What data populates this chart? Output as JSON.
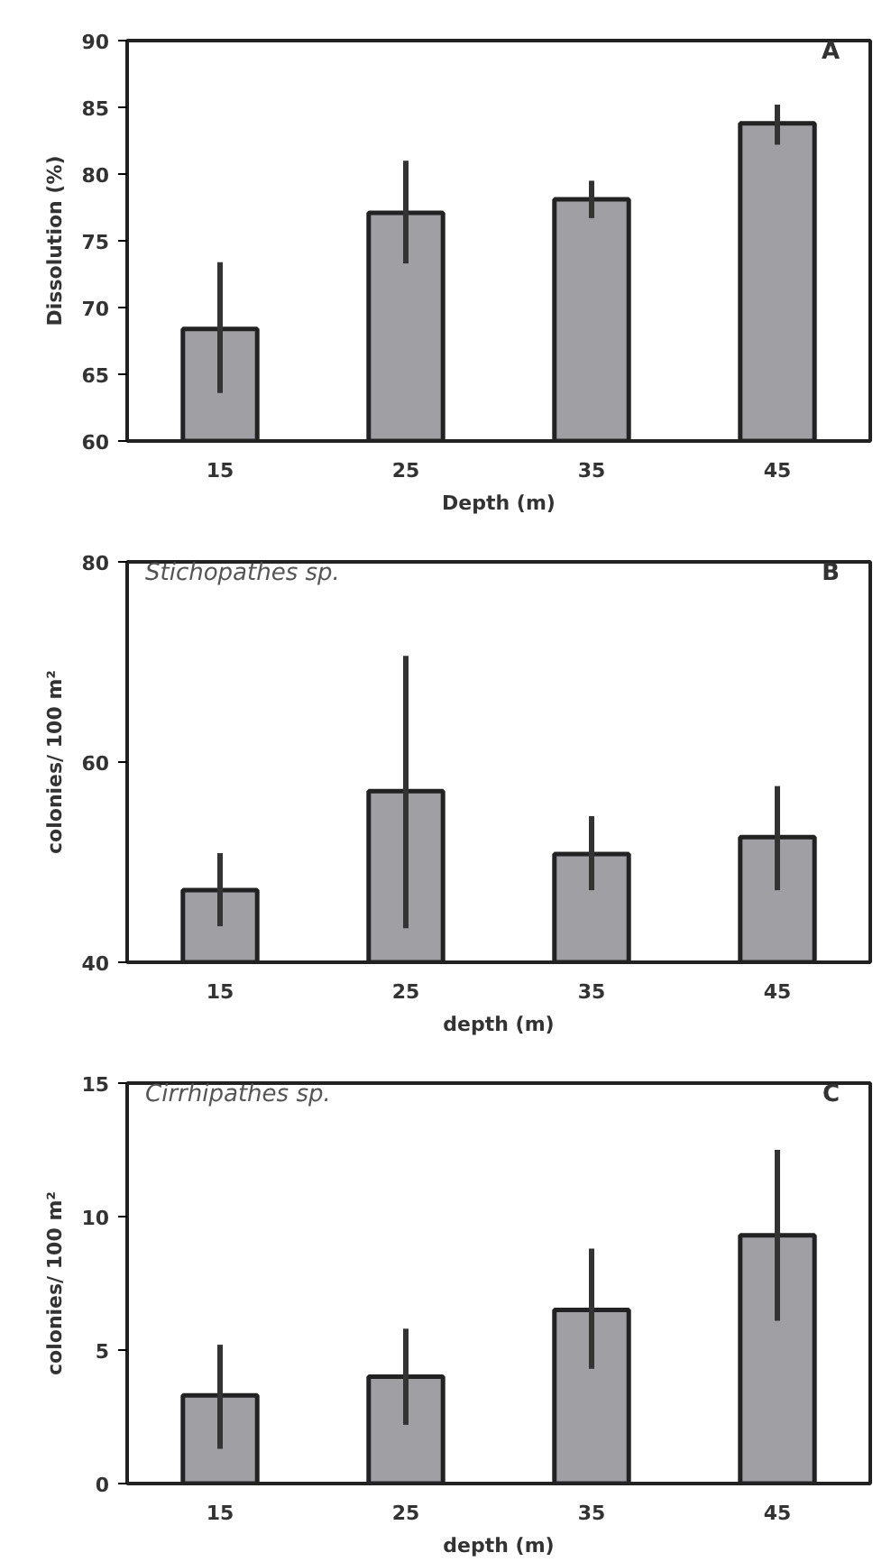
{
  "chart_data": [
    {
      "type": "bar",
      "categories": [
        "15",
        "25",
        "35",
        "45"
      ],
      "values": [
        68.4,
        77.1,
        78.1,
        83.8
      ],
      "color": "#a0a0a4",
      "errors": [
        [
          63.6,
          73.4
        ],
        [
          73.3,
          81.0
        ],
        [
          76.7,
          79.5
        ],
        [
          82.2,
          85.2
        ]
      ],
      "xlabel": "Depth (m)",
      "ylabel": "Dissolution (%)",
      "ylim": [
        60,
        90
      ],
      "yticks": [
        60,
        65,
        70,
        75,
        80,
        85,
        90
      ],
      "annotations": [
        "A"
      ],
      "grid": false
    },
    {
      "type": "bar",
      "categories": [
        "15",
        "25",
        "35",
        "45"
      ],
      "values": [
        47.2,
        57.1,
        50.8,
        52.5
      ],
      "color": "#a0a0a4",
      "errors": [
        [
          43.6,
          50.9
        ],
        [
          43.4,
          70.6
        ],
        [
          47.2,
          54.6
        ],
        [
          47.2,
          57.6
        ]
      ],
      "subtitle": "Stichopathes sp.",
      "xlabel": "depth (m)",
      "ylabel": "colonies/ 100 m²",
      "ylim": [
        40,
        80
      ],
      "yticks": [
        40,
        60,
        80
      ],
      "annotations": [
        "B"
      ],
      "grid": false
    },
    {
      "type": "bar",
      "categories": [
        "15",
        "25",
        "35",
        "45"
      ],
      "values": [
        3.3,
        4.0,
        6.5,
        9.3
      ],
      "color": "#a0a0a4",
      "errors": [
        [
          1.3,
          5.2
        ],
        [
          2.2,
          5.8
        ],
        [
          4.3,
          8.8
        ],
        [
          6.1,
          12.5
        ]
      ],
      "subtitle": "Cirrhipathes sp.",
      "xlabel": "depth (m)",
      "ylabel": "colonies/ 100 m²",
      "ylim": [
        0,
        15
      ],
      "yticks": [
        0,
        5,
        10,
        15
      ],
      "annotations": [
        "C"
      ],
      "grid": false
    }
  ]
}
